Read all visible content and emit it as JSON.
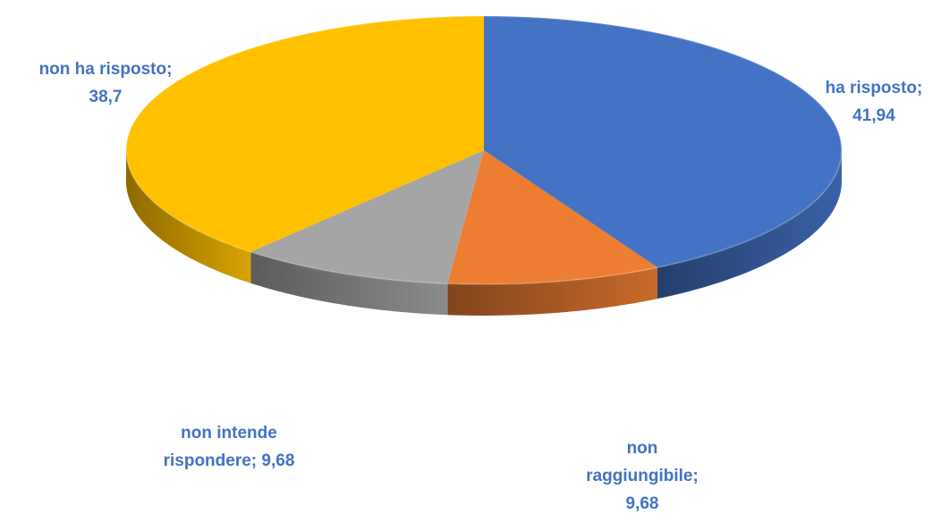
{
  "chart_data": {
    "type": "pie",
    "title": "",
    "slices": [
      {
        "name": "ha risposto",
        "value": 41.94,
        "color": "#4472C4",
        "label_lines": [
          "ha risposto;",
          "41,94"
        ]
      },
      {
        "name": "non raggiungibile",
        "value": 9.68,
        "color": "#ED7D31",
        "label_lines": [
          "non",
          "raggiungibile;",
          "9,68"
        ]
      },
      {
        "name": "non intende rispondere",
        "value": 9.68,
        "color": "#A5A5A5",
        "label_lines": [
          "non intende",
          "rispondere; 9,68"
        ]
      },
      {
        "name": "non ha risposto",
        "value": 38.7,
        "color": "#FFC000",
        "label_lines": [
          "non ha risposto;",
          "38,7"
        ]
      }
    ],
    "start_angle": "12 o'clock",
    "direction": "clockwise",
    "style": "3d",
    "label_color": "#4472C4"
  }
}
